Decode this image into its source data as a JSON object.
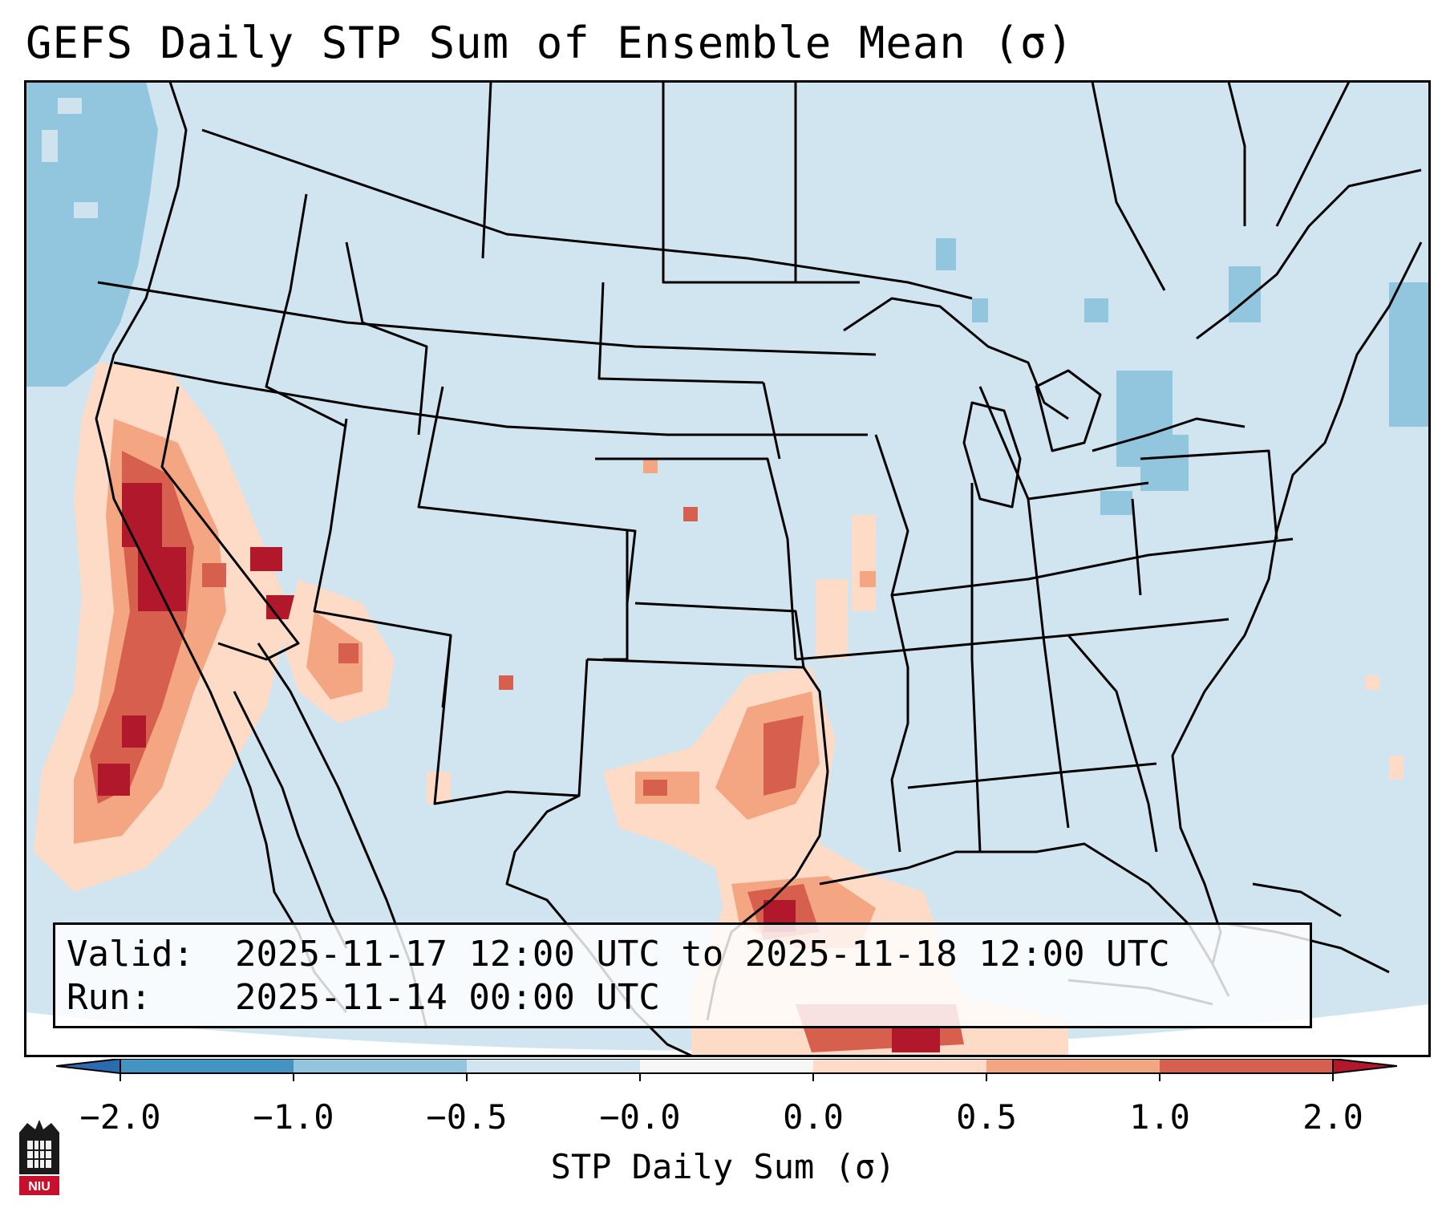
{
  "title": "GEFS Daily STP Sum of Ensemble Mean (σ)",
  "info": {
    "valid_label": "Valid:",
    "valid_value": "2025-11-17 12:00 UTC to 2025-11-18 12:00 UTC",
    "run_label": "Run:",
    "run_value": "2025-11-14 00:00 UTC"
  },
  "colorbar": {
    "label": "STP Daily Sum (σ)",
    "ticks": [
      "−2.0",
      "−1.0",
      "−0.5",
      "−0.0",
      "0.0",
      "0.5",
      "1.0",
      "2.0"
    ],
    "colors": {
      "under": "#2b6cb0",
      "bin_neg2_neg1": "#4393c3",
      "bin_neg1_neg05": "#92c5de",
      "bin_neg05_neg0": "#d1e5f0",
      "bin_zero": "#f7f7f7",
      "bin_0_05": "#fddbc7",
      "bin_05_1": "#f4a582",
      "bin_1_2": "#d6604d",
      "over": "#b2182b"
    }
  },
  "map_colors": {
    "background_field": "#d1e5f0",
    "borders": "#000000"
  },
  "logo": {
    "text": "NIU"
  }
}
